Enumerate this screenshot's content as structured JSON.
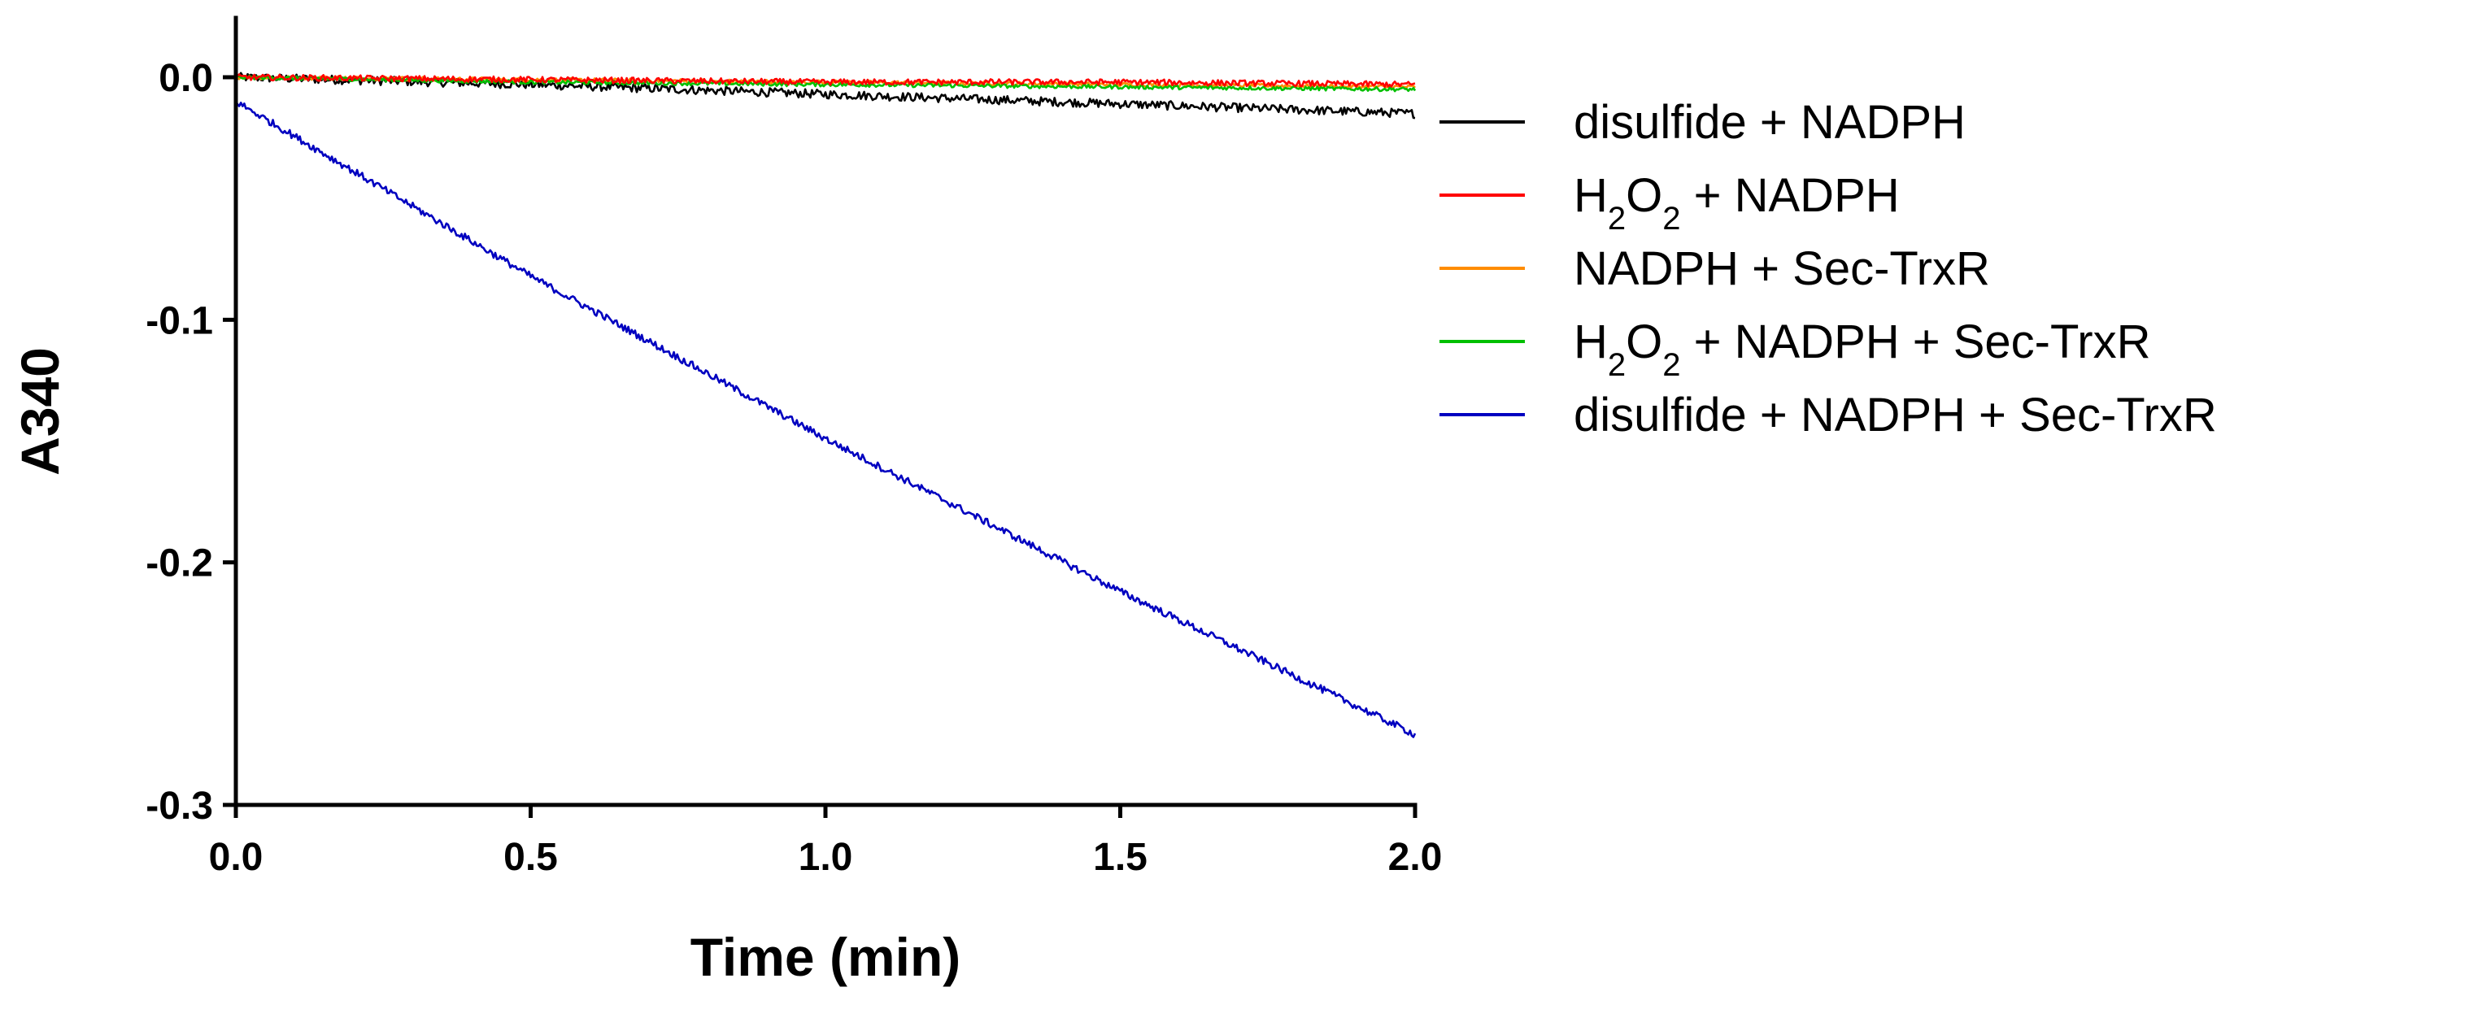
{
  "chart_data": {
    "type": "line",
    "xlabel": "Time (min)",
    "ylabel": "A340",
    "xlim": [
      0,
      2.0
    ],
    "ylim": [
      -0.3,
      0.0
    ],
    "x_ticks": [
      "0.0",
      "0.5",
      "1.0",
      "1.5",
      "2.0"
    ],
    "y_ticks": [
      "0.0",
      "-0.1",
      "-0.2",
      "-0.3"
    ],
    "grid": false,
    "legend_position": "right",
    "series": [
      {
        "name": "disulfide + NADPH",
        "name_parts": [
          "disulfide + NADPH"
        ],
        "color": "#000000",
        "x": [
          0,
          0.5,
          1.0,
          1.5,
          2.0
        ],
        "y": [
          0.0,
          -0.003,
          -0.007,
          -0.011,
          -0.015
        ],
        "noise": 0.0018
      },
      {
        "name": "H2O2 + NADPH",
        "name_parts": [
          "H",
          "2",
          "O",
          "2",
          " + NADPH"
        ],
        "color": "#ff0000",
        "x": [
          0,
          0.5,
          1.0,
          1.5,
          2.0
        ],
        "y": [
          0.0,
          -0.001,
          -0.002,
          -0.002,
          -0.003
        ],
        "noise": 0.0012
      },
      {
        "name": "NADPH + Sec-TrxR",
        "name_parts": [
          "NADPH + Sec-TrxR"
        ],
        "color": "#ff8c00",
        "x": [
          0,
          0.5,
          1.0,
          1.5,
          2.0
        ],
        "y": [
          0.0,
          -0.001,
          -0.002,
          -0.003,
          -0.004
        ],
        "noise": 0.0008
      },
      {
        "name": "H2O2 + NADPH + Sec-TrxR",
        "name_parts": [
          "H",
          "2",
          "O",
          "2",
          " + NADPH + Sec-TrxR"
        ],
        "color": "#00c000",
        "x": [
          0,
          0.5,
          1.0,
          1.5,
          2.0
        ],
        "y": [
          0.0,
          -0.002,
          -0.003,
          -0.004,
          -0.005
        ],
        "noise": 0.0008
      },
      {
        "name": "disulfide + NADPH + Sec-TrxR",
        "name_parts": [
          "disulfide + NADPH + Sec-TrxR"
        ],
        "color": "#0000c0",
        "x": [
          0,
          0.5,
          1.0,
          1.5,
          2.0
        ],
        "y": [
          -0.01,
          -0.082,
          -0.149,
          -0.212,
          -0.271
        ],
        "noise": 0.0015
      }
    ]
  }
}
